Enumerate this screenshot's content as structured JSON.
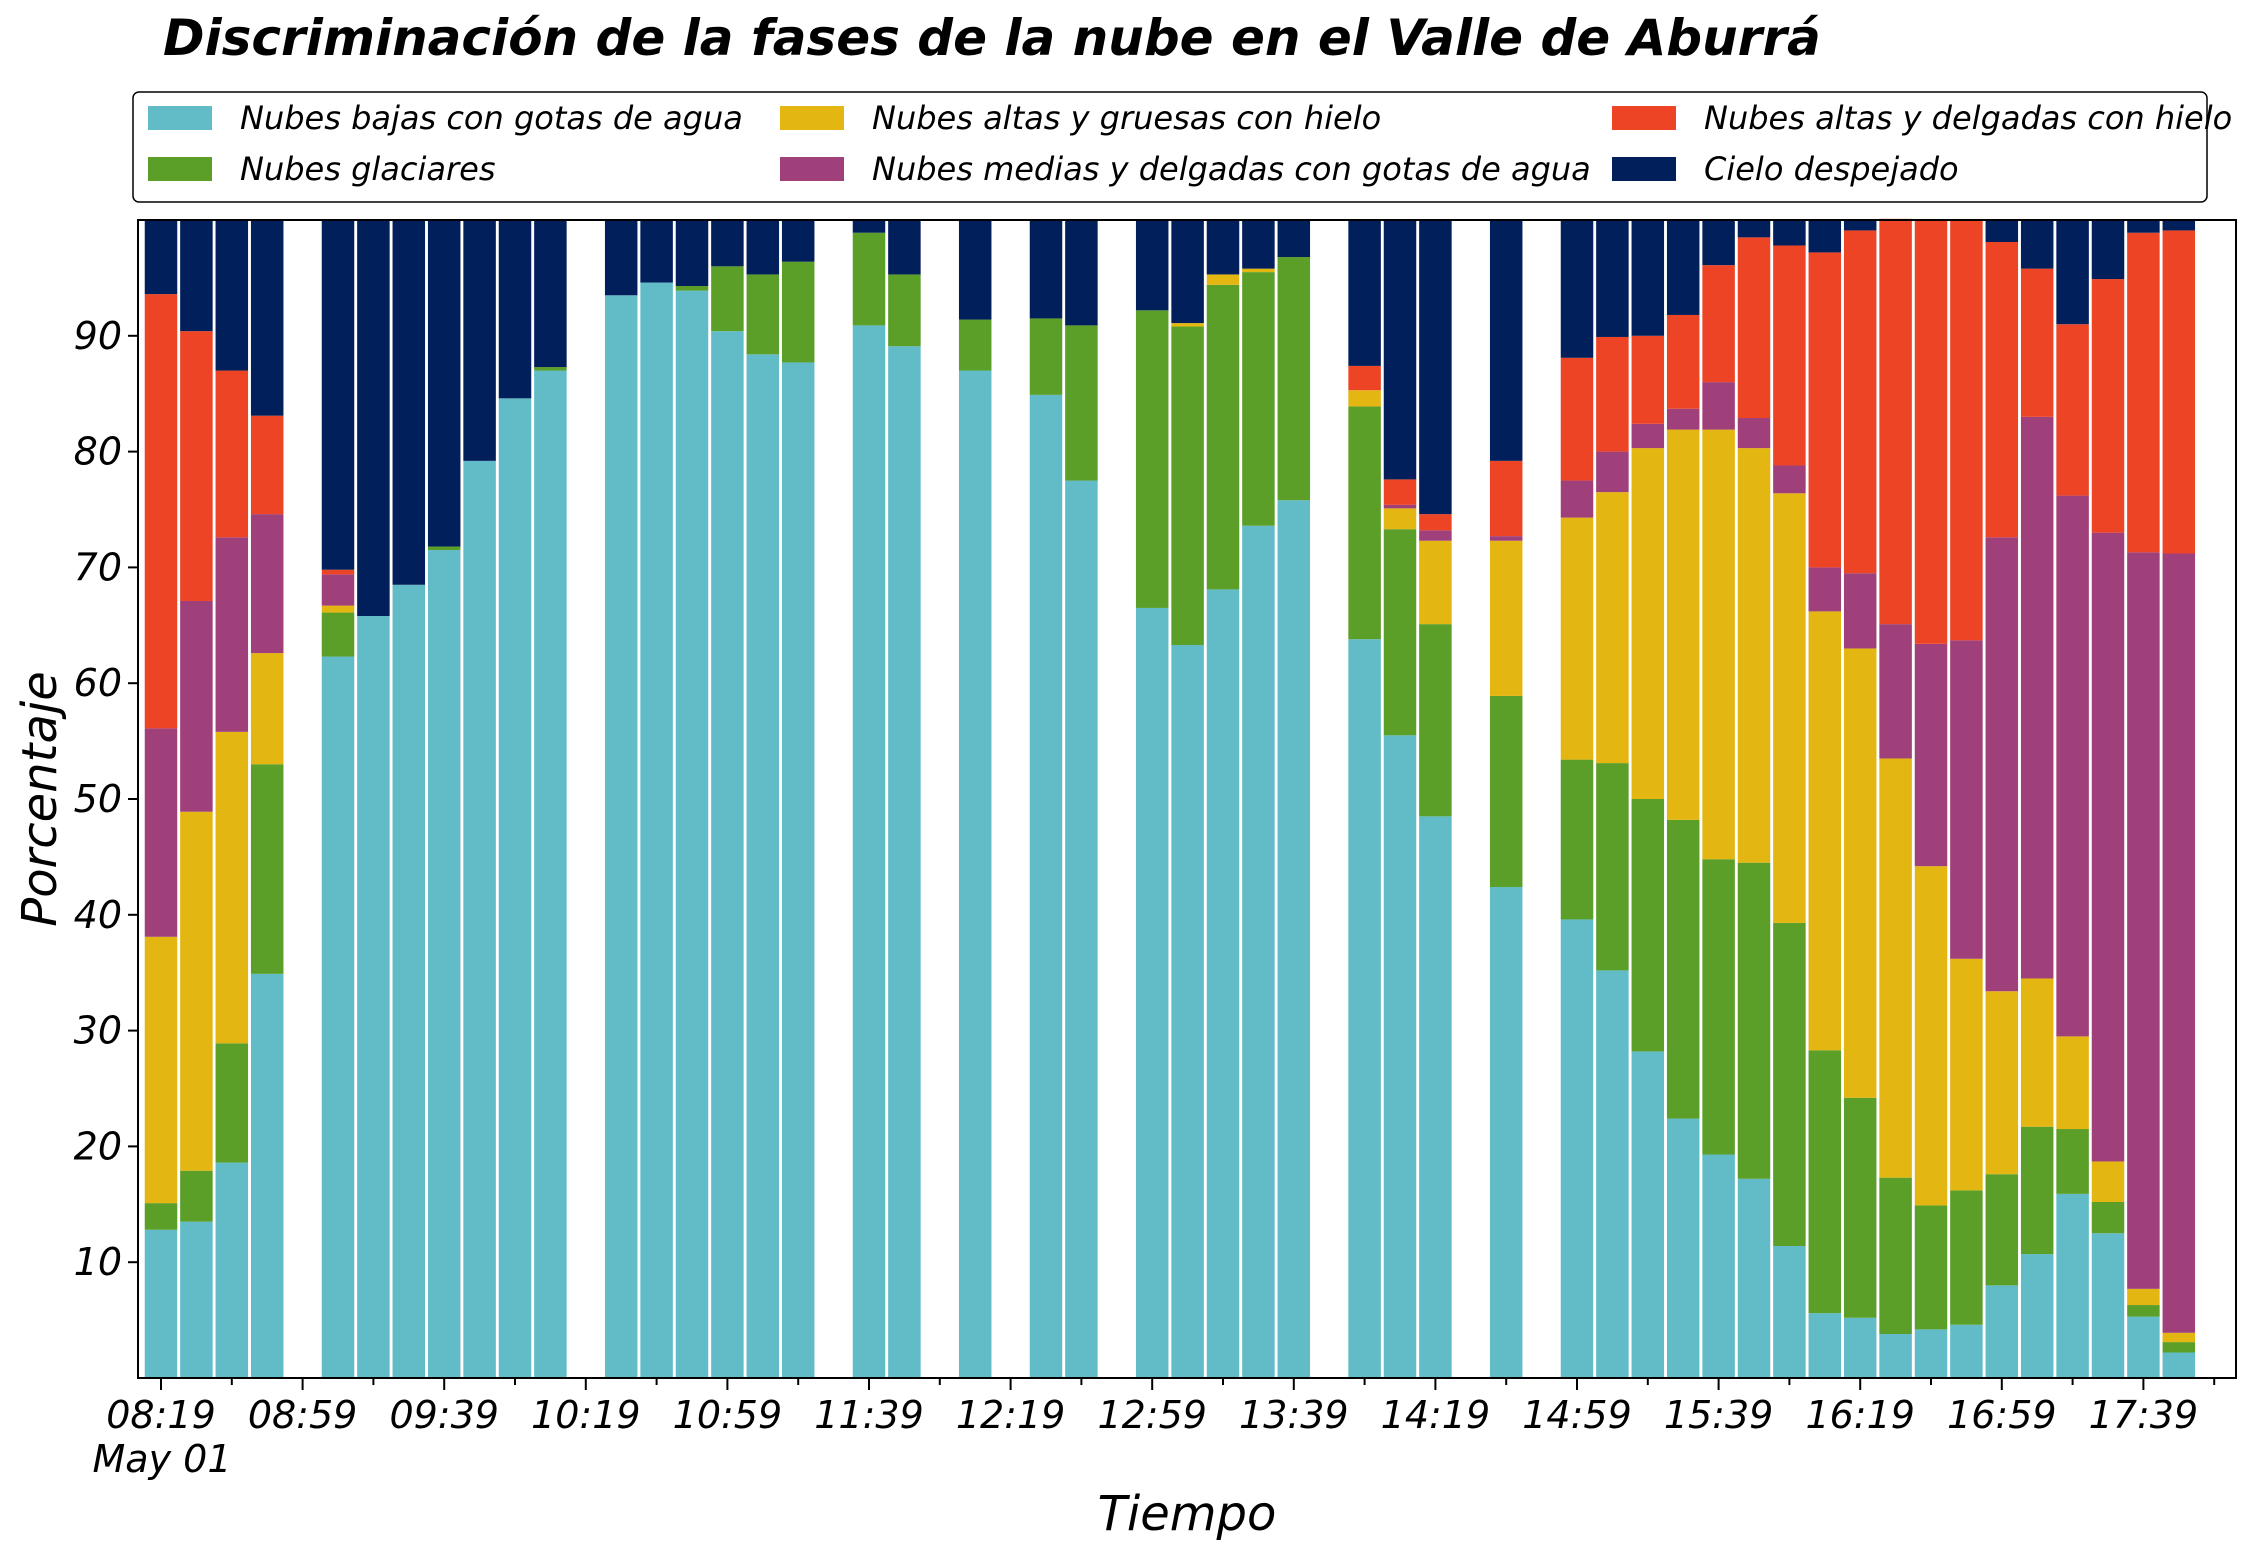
{
  "chart_data": {
    "type": "bar",
    "stacked": true,
    "title": "Discriminación de la fases de la nube en el Valle de Aburrá",
    "xlabel": "Tiempo",
    "ylabel": "Porcentaje",
    "date_label": "May 01",
    "ylim": [
      0,
      100
    ],
    "yticks": [
      10,
      20,
      30,
      40,
      50,
      60,
      70,
      80,
      90
    ],
    "grid": false,
    "legend_position": "top",
    "x_major_ticks": [
      "08:19",
      "08:59",
      "09:39",
      "10:19",
      "10:59",
      "11:39",
      "12:19",
      "12:59",
      "13:39",
      "14:19",
      "14:59",
      "15:39",
      "16:19",
      "16:59",
      "17:39"
    ],
    "series": [
      {
        "name": "Nubes bajas con gotas de agua",
        "color": "#62bcc8"
      },
      {
        "name": "Nubes glaciares",
        "color": "#5b9e28"
      },
      {
        "name": "Nubes altas y gruesas con hielo",
        "color": "#e3b612"
      },
      {
        "name": "Nubes medias y delgadas con gotas de agua",
        "color": "#a0407a"
      },
      {
        "name": "Nubes altas y delgadas con hielo",
        "color": "#ee4426"
      },
      {
        "name": "Cielo despejado",
        "color": "#011f5b"
      }
    ],
    "bars": [
      {
        "time": "08:19",
        "values": [
          12.8,
          2.3,
          23.0,
          18.0,
          37.5,
          6.4
        ]
      },
      {
        "time": "08:29",
        "values": [
          13.5,
          4.4,
          31.0,
          18.2,
          23.3,
          9.6
        ]
      },
      {
        "time": "08:39",
        "values": [
          18.6,
          10.3,
          26.9,
          16.8,
          14.4,
          13.0
        ]
      },
      {
        "time": "08:49",
        "values": [
          34.9,
          18.1,
          9.6,
          12.0,
          8.5,
          16.9
        ]
      },
      {
        "time": "09:09",
        "values": [
          62.3,
          3.8,
          0.6,
          2.7,
          0.4,
          30.2
        ]
      },
      {
        "time": "09:19",
        "values": [
          65.8,
          0,
          0,
          0,
          0,
          34.2
        ]
      },
      {
        "time": "09:29",
        "values": [
          68.5,
          0,
          0,
          0,
          0,
          31.5
        ]
      },
      {
        "time": "09:39",
        "values": [
          71.5,
          0.3,
          0,
          0,
          0,
          28.2
        ]
      },
      {
        "time": "09:49",
        "values": [
          79.2,
          0,
          0,
          0,
          0,
          20.8
        ]
      },
      {
        "time": "09:59",
        "values": [
          84.6,
          0,
          0,
          0,
          0,
          15.4
        ]
      },
      {
        "time": "10:09",
        "values": [
          87.0,
          0.3,
          0,
          0,
          0,
          12.7
        ]
      },
      {
        "time": "10:29",
        "values": [
          93.5,
          0,
          0,
          0,
          0,
          6.5
        ]
      },
      {
        "time": "10:39",
        "values": [
          94.6,
          0,
          0,
          0,
          0,
          5.4
        ]
      },
      {
        "time": "10:49",
        "values": [
          93.9,
          0.4,
          0,
          0,
          0,
          5.7
        ]
      },
      {
        "time": "10:59",
        "values": [
          90.4,
          5.6,
          0,
          0,
          0,
          4.0
        ]
      },
      {
        "time": "11:09",
        "values": [
          88.4,
          6.9,
          0,
          0,
          0,
          4.7
        ]
      },
      {
        "time": "11:19",
        "values": [
          87.7,
          8.7,
          0,
          0,
          0,
          3.6
        ]
      },
      {
        "time": "11:39",
        "values": [
          90.9,
          8.0,
          0,
          0,
          0,
          1.1
        ]
      },
      {
        "time": "11:49",
        "values": [
          89.1,
          6.2,
          0,
          0,
          0,
          4.7
        ]
      },
      {
        "time": "12:09",
        "values": [
          87.0,
          4.4,
          0,
          0,
          0,
          8.6
        ]
      },
      {
        "time": "12:29",
        "values": [
          84.9,
          6.6,
          0,
          0,
          0,
          8.5
        ]
      },
      {
        "time": "12:39",
        "values": [
          77.5,
          13.4,
          0,
          0,
          0,
          9.1
        ]
      },
      {
        "time": "12:59",
        "values": [
          66.5,
          25.7,
          0,
          0,
          0,
          7.8
        ]
      },
      {
        "time": "13:09",
        "values": [
          63.3,
          27.5,
          0.3,
          0,
          0,
          8.9
        ]
      },
      {
        "time": "13:19",
        "values": [
          68.1,
          26.3,
          0.9,
          0,
          0,
          4.7
        ]
      },
      {
        "time": "13:29",
        "values": [
          73.6,
          21.9,
          0.3,
          0,
          0,
          4.2
        ]
      },
      {
        "time": "13:39",
        "values": [
          75.8,
          21.0,
          0,
          0,
          0,
          3.2
        ]
      },
      {
        "time": "13:59",
        "values": [
          63.8,
          20.1,
          1.4,
          0,
          2.1,
          12.6
        ]
      },
      {
        "time": "14:09",
        "values": [
          55.5,
          17.8,
          1.8,
          0.3,
          2.2,
          22.4
        ]
      },
      {
        "time": "14:19",
        "values": [
          48.5,
          16.6,
          7.2,
          0.9,
          1.4,
          25.4
        ]
      },
      {
        "time": "14:39",
        "values": [
          42.4,
          16.5,
          13.4,
          0.4,
          6.5,
          20.8
        ]
      },
      {
        "time": "14:59",
        "values": [
          39.6,
          13.8,
          20.9,
          3.2,
          10.6,
          11.9
        ]
      },
      {
        "time": "15:09",
        "values": [
          35.2,
          17.9,
          23.4,
          3.5,
          9.9,
          10.1
        ]
      },
      {
        "time": "15:19",
        "values": [
          28.2,
          21.8,
          30.3,
          2.1,
          7.6,
          10.0
        ]
      },
      {
        "time": "15:29",
        "values": [
          22.4,
          25.8,
          33.7,
          1.8,
          8.1,
          8.2
        ]
      },
      {
        "time": "15:39",
        "values": [
          19.3,
          25.5,
          37.1,
          4.1,
          10.1,
          3.9
        ]
      },
      {
        "time": "15:49",
        "values": [
          17.2,
          27.3,
          35.8,
          2.6,
          15.6,
          1.5
        ]
      },
      {
        "time": "15:59",
        "values": [
          11.4,
          27.9,
          37.1,
          2.4,
          19.0,
          2.2
        ]
      },
      {
        "time": "16:09",
        "values": [
          5.6,
          22.7,
          37.9,
          3.8,
          27.2,
          2.8
        ]
      },
      {
        "time": "16:19",
        "values": [
          5.2,
          19.0,
          38.8,
          6.5,
          29.6,
          0.9
        ]
      },
      {
        "time": "16:29",
        "values": [
          3.8,
          13.5,
          36.2,
          11.6,
          35.0,
          0
        ]
      },
      {
        "time": "16:39",
        "values": [
          4.2,
          10.7,
          29.3,
          19.2,
          36.6,
          0
        ]
      },
      {
        "time": "16:49",
        "values": [
          4.6,
          11.6,
          20.0,
          27.5,
          36.3,
          0
        ]
      },
      {
        "time": "16:59",
        "values": [
          8.0,
          9.6,
          15.8,
          39.2,
          25.5,
          1.9
        ]
      },
      {
        "time": "17:09",
        "values": [
          10.7,
          11.0,
          12.8,
          48.5,
          12.8,
          4.2
        ]
      },
      {
        "time": "17:19",
        "values": [
          15.9,
          5.6,
          8.0,
          46.7,
          14.8,
          9.0
        ]
      },
      {
        "time": "17:29",
        "values": [
          12.5,
          2.7,
          3.5,
          54.3,
          21.9,
          5.1
        ]
      },
      {
        "time": "17:39",
        "values": [
          5.3,
          1.0,
          1.4,
          63.6,
          27.6,
          1.1
        ]
      },
      {
        "time": "17:49",
        "values": [
          2.2,
          0.9,
          0.8,
          67.3,
          27.9,
          0.9
        ]
      }
    ]
  }
}
